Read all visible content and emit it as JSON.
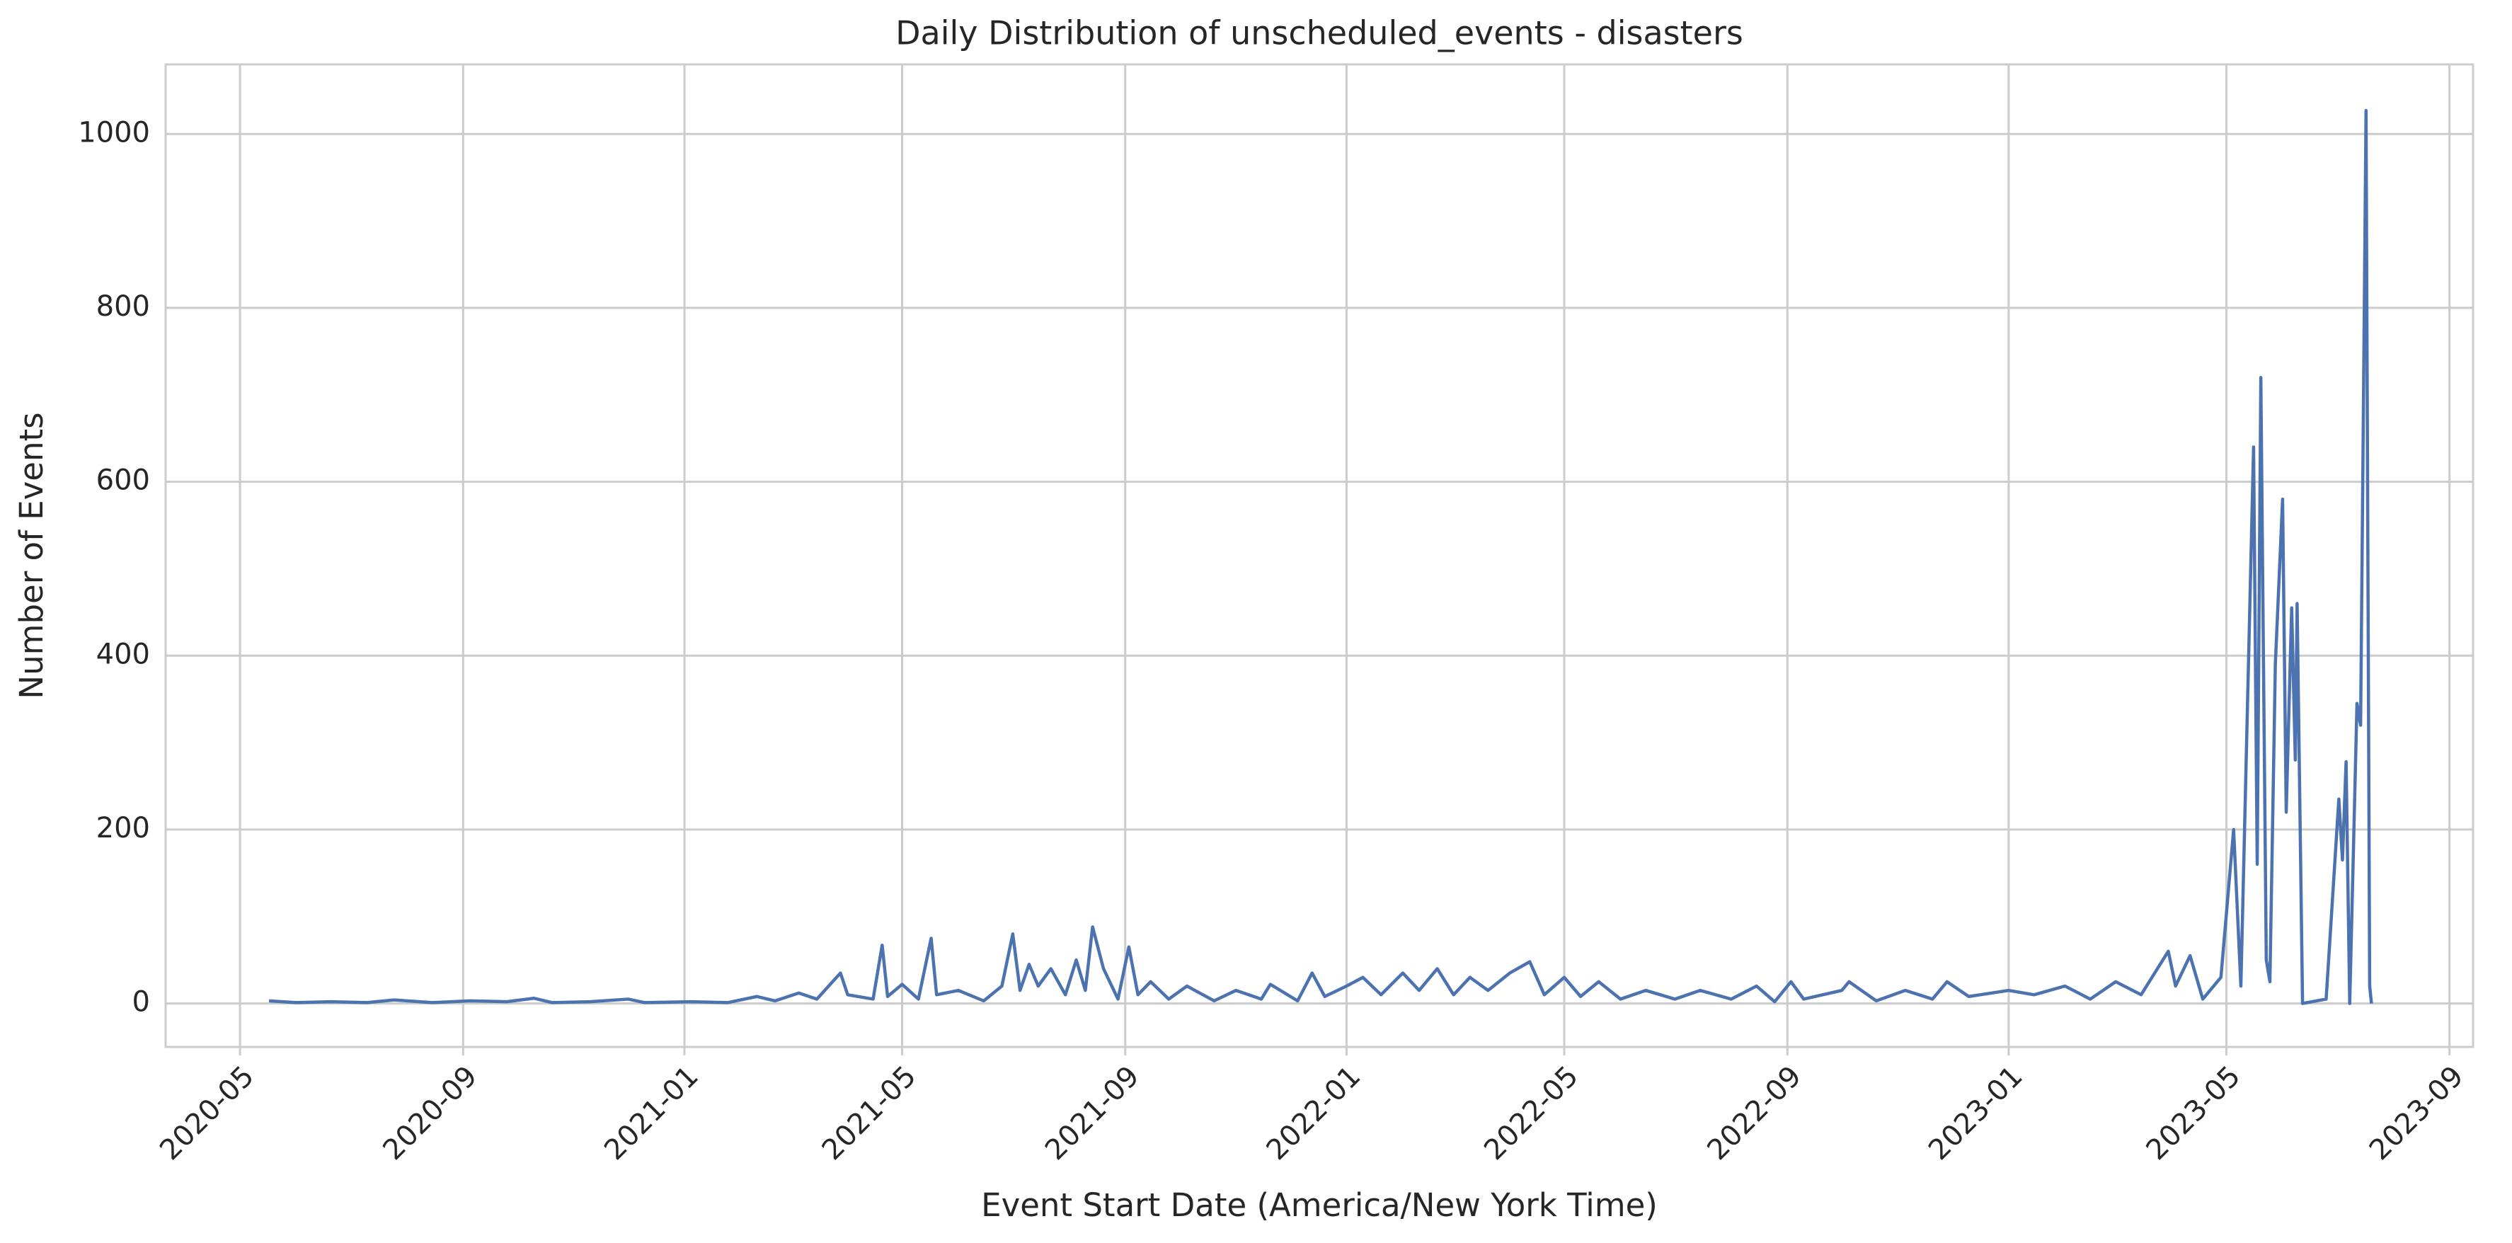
{
  "chart_data": {
    "type": "line",
    "title": "Daily Distribution of unscheduled_events - disasters",
    "x_label": "Event Start Date (America/New York Time)",
    "y_label": "Number of Events",
    "xlim": [
      "2020-03-21",
      "2023-09-14"
    ],
    "xticks": [
      "2020-05",
      "2020-09",
      "2021-01",
      "2021-05",
      "2021-09",
      "2022-01",
      "2022-05",
      "2022-09",
      "2023-01",
      "2023-05",
      "2023-09"
    ],
    "ylim": [
      -50,
      1080
    ],
    "yticks": [
      0,
      200,
      400,
      600,
      800,
      1000
    ],
    "grid": true,
    "x": [
      "2020-05-17",
      "2020-06-01",
      "2020-06-20",
      "2020-07-10",
      "2020-07-25",
      "2020-08-15",
      "2020-09-05",
      "2020-09-25",
      "2020-10-10",
      "2020-10-20",
      "2020-11-10",
      "2020-12-01",
      "2020-12-10",
      "2021-01-05",
      "2021-01-25",
      "2021-02-10",
      "2021-02-20",
      "2021-03-05",
      "2021-03-15",
      "2021-03-28",
      "2021-04-01",
      "2021-04-15",
      "2021-04-20",
      "2021-04-23",
      "2021-05-01",
      "2021-05-10",
      "2021-05-17",
      "2021-05-20",
      "2021-06-01",
      "2021-06-15",
      "2021-06-25",
      "2021-07-01",
      "2021-07-05",
      "2021-07-10",
      "2021-07-15",
      "2021-07-22",
      "2021-07-30",
      "2021-08-05",
      "2021-08-10",
      "2021-08-14",
      "2021-08-20",
      "2021-08-28",
      "2021-09-03",
      "2021-09-08",
      "2021-09-15",
      "2021-09-25",
      "2021-10-05",
      "2021-10-20",
      "2021-11-01",
      "2021-11-15",
      "2021-11-20",
      "2021-12-05",
      "2021-12-13",
      "2021-12-20",
      "2022-01-01",
      "2022-01-10",
      "2022-01-20",
      "2022-02-01",
      "2022-02-10",
      "2022-02-20",
      "2022-03-01",
      "2022-03-10",
      "2022-03-20",
      "2022-04-01",
      "2022-04-12",
      "2022-04-20",
      "2022-05-01",
      "2022-05-10",
      "2022-05-20",
      "2022-06-01",
      "2022-06-15",
      "2022-07-01",
      "2022-07-15",
      "2022-08-01",
      "2022-08-15",
      "2022-08-25",
      "2022-09-03",
      "2022-09-10",
      "2022-10-01",
      "2022-10-05",
      "2022-10-20",
      "2022-11-05",
      "2022-11-20",
      "2022-11-28",
      "2022-12-10",
      "2023-01-01",
      "2023-01-15",
      "2023-02-01",
      "2023-02-15",
      "2023-03-01",
      "2023-03-15",
      "2023-03-30",
      "2023-04-03",
      "2023-04-11",
      "2023-04-18",
      "2023-04-28",
      "2023-05-05",
      "2023-05-09",
      "2023-05-16",
      "2023-05-18",
      "2023-05-20",
      "2023-05-23",
      "2023-05-25",
      "2023-05-28",
      "2023-06-01",
      "2023-06-03",
      "2023-06-06",
      "2023-06-08",
      "2023-06-09",
      "2023-06-12",
      "2023-06-25",
      "2023-07-02",
      "2023-07-04",
      "2023-07-06",
      "2023-07-08",
      "2023-07-12",
      "2023-07-14",
      "2023-07-17",
      "2023-07-19",
      "2023-07-20"
    ],
    "series": [
      {
        "name": "disasters",
        "color": "#4c72b0",
        "values": [
          3,
          1,
          2,
          1,
          4,
          1,
          3,
          2,
          6,
          1,
          2,
          5,
          1,
          2,
          1,
          8,
          3,
          12,
          5,
          35,
          10,
          5,
          67,
          8,
          22,
          5,
          75,
          10,
          15,
          3,
          20,
          80,
          15,
          45,
          20,
          40,
          10,
          50,
          15,
          88,
          40,
          5,
          65,
          10,
          25,
          5,
          20,
          3,
          15,
          5,
          22,
          3,
          35,
          8,
          20,
          30,
          10,
          35,
          15,
          40,
          10,
          30,
          15,
          35,
          48,
          10,
          30,
          8,
          25,
          5,
          15,
          5,
          15,
          5,
          20,
          2,
          25,
          5,
          15,
          25,
          3,
          15,
          5,
          25,
          8,
          15,
          10,
          20,
          5,
          25,
          10,
          60,
          20,
          55,
          5,
          30,
          200,
          20,
          640,
          160,
          720,
          50,
          25,
          390,
          580,
          220,
          455,
          280,
          460,
          0,
          5,
          235,
          165,
          278,
          0,
          345,
          320,
          1027,
          20,
          0
        ]
      }
    ]
  }
}
